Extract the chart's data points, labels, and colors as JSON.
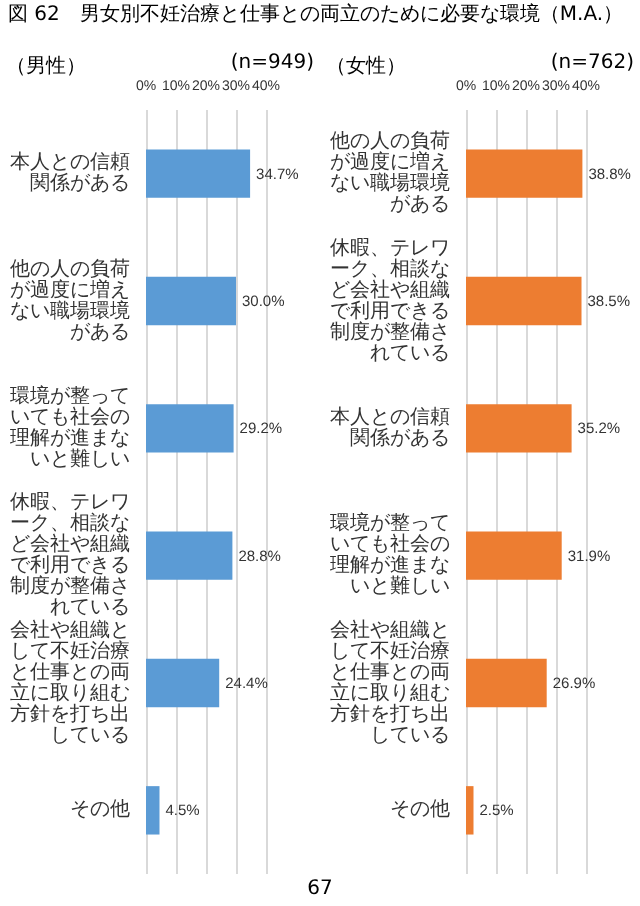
{
  "chart_data": [
    {
      "type": "bar",
      "orientation": "horizontal",
      "title": "図 62　男女別不妊治療と仕事との両立のために必要な環境（M.A.）",
      "subtitle": "（男性）",
      "annotations": [
        "(n=949)"
      ],
      "categories": [
        "本人との信頼関係がある",
        "他の人の負荷が過度に増えない職場環境がある",
        "環境が整っていても社会の理解が進まないと難しい",
        "休暇、テレワーク、相談など会社や組織で利用できる制度が整備されている",
        "会社や組織として不妊治療と仕事との両立に取り組む方針を打ち出している",
        "その他"
      ],
      "values": [
        34.7,
        30.0,
        29.2,
        28.8,
        24.4,
        4.5
      ],
      "color": "#5b9bd5",
      "value_labels": [
        "34.7%",
        "30.0%",
        "29.2%",
        "28.8%",
        "24.4%",
        "4.5%"
      ],
      "xlim": [
        0,
        40
      ],
      "xticks": [
        {
          "value": 0,
          "label": "0%"
        },
        {
          "value": 10,
          "label": "10%"
        },
        {
          "value": 20,
          "label": "20%"
        },
        {
          "value": 30,
          "label": "30%"
        },
        {
          "value": 40,
          "label": "40%"
        }
      ],
      "grid": "x"
    },
    {
      "type": "bar",
      "orientation": "horizontal",
      "subtitle": "（女性）",
      "annotations": [
        "(n=762)",
        "67"
      ],
      "categories": [
        "他の人の負荷が過度に増えない職場環境がある",
        "休暇、テレワーク、相談など会社や組織で利用できる制度が整備されている",
        "本人との信頼関係がある",
        "環境が整っていても社会の理解が進まないと難しい",
        "会社や組織として不妊治療と仕事との両立に取り組む方針を打ち出している",
        "その他"
      ],
      "values": [
        38.8,
        38.5,
        35.2,
        31.9,
        26.9,
        2.5
      ],
      "color": "#ed7d31",
      "value_labels": [
        "38.8%",
        "38.5%",
        "35.2%",
        "31.9%",
        "26.9%",
        "2.5%"
      ],
      "xlim": [
        0,
        40
      ],
      "xticks": [
        {
          "value": 0,
          "label": "0%"
        },
        {
          "value": 10,
          "label": "10%"
        },
        {
          "value": 20,
          "label": "20%"
        },
        {
          "value": 30,
          "label": "30%"
        },
        {
          "value": 40,
          "label": "40%"
        }
      ],
      "grid": "x"
    }
  ]
}
